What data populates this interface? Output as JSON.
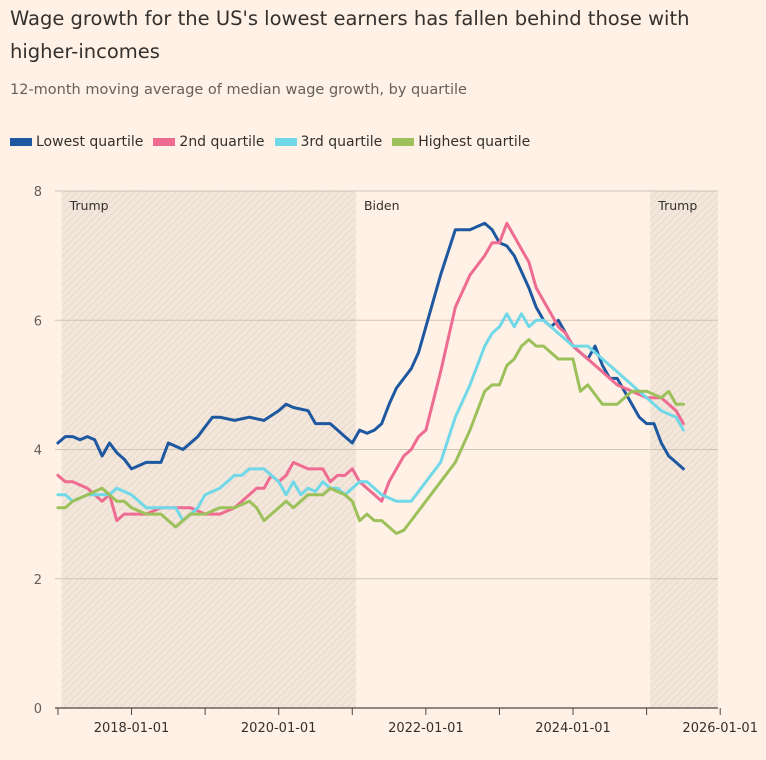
{
  "title": "Wage growth for the US's lowest earners has fallen behind those with higher-incomes",
  "subtitle": "12-month moving average of median wage growth, by quartile",
  "colors": {
    "background": "#fff1e5",
    "lowest": "#1d58a0",
    "second": "#ee6b92",
    "third": "#71d8e8",
    "highest": "#9cc05a"
  },
  "legend": [
    {
      "label": "Lowest quartile",
      "color": "#1d58a0"
    },
    {
      "label": "2nd quartile",
      "color": "#ee6b92"
    },
    {
      "label": "3rd quartile",
      "color": "#71d8e8"
    },
    {
      "label": "Highest quartile",
      "color": "#9cc05a"
    }
  ],
  "chart_data": {
    "type": "line",
    "title": "Wage growth for the US's lowest earners has fallen behind those with higher-incomes",
    "subtitle": "12-month moving average of median wage growth, by quartile",
    "xlabel": "",
    "ylabel": "",
    "xlim": [
      2016.96,
      2025.97
    ],
    "ylim": [
      0,
      8
    ],
    "yticks": [
      0,
      2,
      4,
      6,
      8
    ],
    "xticks": [
      {
        "value": 2018.0,
        "label": "2018-01-01"
      },
      {
        "value": 2020.0,
        "label": "2020-01-01"
      },
      {
        "value": 2022.0,
        "label": "2022-01-01"
      },
      {
        "value": 2024.0,
        "label": "2024-01-01"
      },
      {
        "value": 2026.0,
        "label": "2026-01-01"
      }
    ],
    "minor_xticks": [
      2017.0,
      2019.0,
      2021.0,
      2023.0,
      2025.0
    ],
    "grid": "horizontal",
    "periods": [
      {
        "label": "Trump",
        "start": 2017.05,
        "end": 2021.05,
        "shaded": true
      },
      {
        "label": "Biden",
        "start": 2021.05,
        "end": 2025.05,
        "shaded": false
      },
      {
        "label": "Trump",
        "start": 2025.05,
        "end": 2025.97,
        "shaded": true
      }
    ],
    "series": [
      {
        "name": "Lowest quartile",
        "color": "#1d58a0",
        "x": [
          2017.0,
          2017.1,
          2017.2,
          2017.3,
          2017.4,
          2017.5,
          2017.6,
          2017.7,
          2017.8,
          2017.9,
          2018.0,
          2018.2,
          2018.4,
          2018.5,
          2018.7,
          2018.9,
          2019.0,
          2019.1,
          2019.2,
          2019.4,
          2019.6,
          2019.8,
          2020.0,
          2020.1,
          2020.2,
          2020.4,
          2020.5,
          2020.7,
          2020.8,
          2020.9,
          2021.0,
          2021.1,
          2021.2,
          2021.3,
          2021.4,
          2021.5,
          2021.6,
          2021.7,
          2021.8,
          2021.9,
          2022.0,
          2022.2,
          2022.4,
          2022.6,
          2022.8,
          2022.9,
          2023.0,
          2023.1,
          2023.2,
          2023.4,
          2023.5,
          2023.6,
          2023.7,
          2023.8,
          2023.9,
          2024.0,
          2024.1,
          2024.2,
          2024.3,
          2024.4,
          2024.5,
          2024.6,
          2024.7,
          2024.8,
          2024.9,
          2025.0,
          2025.1,
          2025.2,
          2025.3,
          2025.4,
          2025.5
        ],
        "values": [
          4.1,
          4.2,
          4.2,
          4.15,
          4.2,
          4.15,
          3.9,
          4.1,
          3.95,
          3.85,
          3.7,
          3.8,
          3.8,
          4.1,
          4.0,
          4.2,
          4.35,
          4.5,
          4.5,
          4.45,
          4.5,
          4.45,
          4.6,
          4.7,
          4.65,
          4.6,
          4.4,
          4.4,
          4.3,
          4.2,
          4.1,
          4.3,
          4.25,
          4.3,
          4.4,
          4.7,
          4.95,
          5.1,
          5.25,
          5.5,
          5.9,
          6.7,
          7.4,
          7.4,
          7.5,
          7.4,
          7.2,
          7.15,
          7.0,
          6.5,
          6.2,
          6.0,
          5.9,
          6.0,
          5.8,
          5.6,
          5.5,
          5.4,
          5.6,
          5.3,
          5.1,
          5.1,
          4.9,
          4.7,
          4.5,
          4.4,
          4.4,
          4.1,
          3.9,
          3.8,
          3.7
        ]
      },
      {
        "name": "2nd quartile",
        "color": "#ee6b92",
        "x": [
          2017.0,
          2017.1,
          2017.2,
          2017.4,
          2017.6,
          2017.7,
          2017.8,
          2017.9,
          2018.0,
          2018.2,
          2018.4,
          2018.6,
          2018.8,
          2019.0,
          2019.2,
          2019.4,
          2019.6,
          2019.7,
          2019.8,
          2019.9,
          2020.0,
          2020.1,
          2020.2,
          2020.4,
          2020.5,
          2020.6,
          2020.7,
          2020.8,
          2020.9,
          2021.0,
          2021.1,
          2021.2,
          2021.3,
          2021.4,
          2021.5,
          2021.6,
          2021.7,
          2021.8,
          2021.9,
          2022.0,
          2022.2,
          2022.4,
          2022.6,
          2022.8,
          2022.9,
          2023.0,
          2023.1,
          2023.2,
          2023.3,
          2023.4,
          2023.5,
          2023.6,
          2023.7,
          2023.8,
          2023.9,
          2024.0,
          2024.2,
          2024.4,
          2024.6,
          2024.8,
          2025.0,
          2025.2,
          2025.4,
          2025.5
        ],
        "values": [
          3.6,
          3.5,
          3.5,
          3.4,
          3.2,
          3.3,
          2.9,
          3.0,
          3.0,
          3.0,
          3.1,
          3.1,
          3.1,
          3.0,
          3.0,
          3.1,
          3.3,
          3.4,
          3.4,
          3.6,
          3.5,
          3.6,
          3.8,
          3.7,
          3.7,
          3.7,
          3.5,
          3.6,
          3.6,
          3.7,
          3.5,
          3.4,
          3.3,
          3.2,
          3.5,
          3.7,
          3.9,
          4.0,
          4.2,
          4.3,
          5.2,
          6.2,
          6.7,
          7.0,
          7.2,
          7.2,
          7.5,
          7.3,
          7.1,
          6.9,
          6.5,
          6.3,
          6.1,
          5.9,
          5.8,
          5.6,
          5.4,
          5.2,
          5.0,
          4.9,
          4.8,
          4.8,
          4.6,
          4.4
        ]
      },
      {
        "name": "3rd quartile",
        "color": "#71d8e8",
        "x": [
          2017.0,
          2017.1,
          2017.2,
          2017.4,
          2017.5,
          2017.7,
          2017.8,
          2017.9,
          2018.0,
          2018.2,
          2018.4,
          2018.6,
          2018.7,
          2018.9,
          2019.0,
          2019.2,
          2019.4,
          2019.5,
          2019.6,
          2019.8,
          2020.0,
          2020.1,
          2020.2,
          2020.3,
          2020.4,
          2020.5,
          2020.6,
          2020.7,
          2020.8,
          2020.9,
          2021.0,
          2021.1,
          2021.2,
          2021.4,
          2021.6,
          2021.8,
          2022.0,
          2022.2,
          2022.4,
          2022.6,
          2022.8,
          2022.9,
          2023.0,
          2023.1,
          2023.2,
          2023.3,
          2023.4,
          2023.5,
          2023.6,
          2023.7,
          2023.8,
          2023.9,
          2024.0,
          2024.2,
          2024.4,
          2024.6,
          2024.8,
          2025.0,
          2025.2,
          2025.4,
          2025.5
        ],
        "values": [
          3.3,
          3.3,
          3.2,
          3.3,
          3.3,
          3.3,
          3.4,
          3.35,
          3.3,
          3.1,
          3.1,
          3.1,
          2.9,
          3.1,
          3.3,
          3.4,
          3.6,
          3.6,
          3.7,
          3.7,
          3.5,
          3.3,
          3.5,
          3.3,
          3.4,
          3.35,
          3.5,
          3.4,
          3.4,
          3.3,
          3.4,
          3.5,
          3.5,
          3.3,
          3.2,
          3.2,
          3.5,
          3.8,
          4.5,
          5.0,
          5.6,
          5.8,
          5.9,
          6.1,
          5.9,
          6.1,
          5.9,
          6.0,
          6.0,
          5.9,
          5.8,
          5.7,
          5.6,
          5.6,
          5.4,
          5.2,
          5.0,
          4.8,
          4.6,
          4.5,
          4.3
        ]
      },
      {
        "name": "Highest quartile",
        "color": "#9cc05a",
        "x": [
          2017.0,
          2017.1,
          2017.2,
          2017.4,
          2017.6,
          2017.7,
          2017.8,
          2017.9,
          2018.0,
          2018.2,
          2018.4,
          2018.5,
          2018.6,
          2018.8,
          2019.0,
          2019.2,
          2019.4,
          2019.6,
          2019.7,
          2019.8,
          2020.0,
          2020.1,
          2020.2,
          2020.4,
          2020.5,
          2020.6,
          2020.7,
          2020.8,
          2020.9,
          2021.0,
          2021.1,
          2021.2,
          2021.3,
          2021.4,
          2021.6,
          2021.7,
          2021.8,
          2022.0,
          2022.2,
          2022.4,
          2022.6,
          2022.8,
          2022.9,
          2023.0,
          2023.1,
          2023.2,
          2023.3,
          2023.4,
          2023.5,
          2023.6,
          2023.7,
          2023.8,
          2023.9,
          2024.0,
          2024.1,
          2024.2,
          2024.4,
          2024.6,
          2024.8,
          2025.0,
          2025.2,
          2025.3,
          2025.4,
          2025.5
        ],
        "values": [
          3.1,
          3.1,
          3.2,
          3.3,
          3.4,
          3.3,
          3.2,
          3.2,
          3.1,
          3.0,
          3.0,
          2.9,
          2.8,
          3.0,
          3.0,
          3.1,
          3.1,
          3.2,
          3.1,
          2.9,
          3.1,
          3.2,
          3.1,
          3.3,
          3.3,
          3.3,
          3.4,
          3.35,
          3.3,
          3.2,
          2.9,
          3.0,
          2.9,
          2.9,
          2.7,
          2.75,
          2.9,
          3.2,
          3.5,
          3.8,
          4.3,
          4.9,
          5.0,
          5.0,
          5.3,
          5.4,
          5.6,
          5.7,
          5.6,
          5.6,
          5.5,
          5.4,
          5.4,
          5.4,
          4.9,
          5.0,
          4.7,
          4.7,
          4.9,
          4.9,
          4.8,
          4.9,
          4.7,
          4.7
        ]
      }
    ]
  }
}
